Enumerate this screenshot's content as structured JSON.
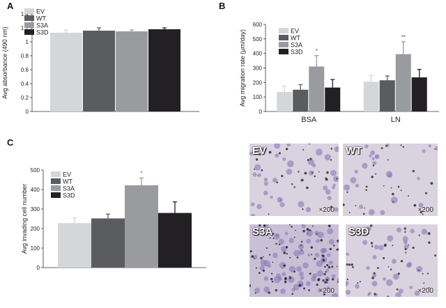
{
  "panels": {
    "a": {
      "letter": "A"
    },
    "b": {
      "letter": "B"
    },
    "c": {
      "letter": "C"
    }
  },
  "colors": {
    "EV": "#d4d6d8",
    "WT": "#5b5c5f",
    "S3A": "#9a9b9e",
    "S3D": "#222023"
  },
  "legend": [
    "EV",
    "WT",
    "S3A",
    "S3D"
  ],
  "chart_data": [
    {
      "type": "bar",
      "ylabel": "Avg absorbance (490 nm)",
      "ylim": [
        0,
        1.4
      ],
      "yticks": [
        "0",
        "0.2",
        "0.4",
        "0.6",
        "0.8",
        "1",
        "1.2",
        "1.4"
      ],
      "series": [
        {
          "name": "EV",
          "values": [
            1.13
          ],
          "error": [
            0.04
          ]
        },
        {
          "name": "WT",
          "values": [
            1.16
          ],
          "error": [
            0.04
          ]
        },
        {
          "name": "S3A",
          "values": [
            1.15
          ],
          "error": [
            0.02
          ]
        },
        {
          "name": "S3D",
          "values": [
            1.18
          ],
          "error": [
            0.02
          ]
        }
      ],
      "legend_position": "top-left"
    },
    {
      "type": "bar",
      "ylabel": "Avg migration rate (μm/day)",
      "ylim": [
        0,
        600
      ],
      "yticks": [
        "0",
        "100",
        "200",
        "300",
        "400",
        "500",
        "600"
      ],
      "categories": [
        "BSA",
        "LN"
      ],
      "series": [
        {
          "name": "EV",
          "values": [
            135,
            205
          ],
          "error": [
            40,
            45
          ]
        },
        {
          "name": "WT",
          "values": [
            150,
            215
          ],
          "error": [
            35,
            30
          ]
        },
        {
          "name": "S3A",
          "values": [
            310,
            395
          ],
          "error": [
            75,
            85
          ],
          "annotations": [
            "*",
            "**"
          ]
        },
        {
          "name": "S3D",
          "values": [
            165,
            235
          ],
          "error": [
            55,
            55
          ]
        }
      ],
      "legend_position": "top-left"
    },
    {
      "type": "bar",
      "ylabel": "Avg invading cell number",
      "ylim": [
        0,
        500
      ],
      "yticks": [
        "0",
        "100",
        "200",
        "300",
        "400",
        "500"
      ],
      "series": [
        {
          "name": "EV",
          "values": [
            228
          ],
          "error": [
            27
          ]
        },
        {
          "name": "WT",
          "values": [
            252
          ],
          "error": [
            22
          ]
        },
        {
          "name": "S3A",
          "values": [
            422
          ],
          "error": [
            37
          ],
          "annotations": [
            "*"
          ]
        },
        {
          "name": "S3D",
          "values": [
            280
          ],
          "error": [
            57
          ]
        }
      ],
      "legend_position": "top-left"
    }
  ],
  "micrographs": [
    {
      "label": "EV",
      "magnification": "×200"
    },
    {
      "label": "WT",
      "magnification": "×200"
    },
    {
      "label": "S3A",
      "magnification": "×200"
    },
    {
      "label": "S3D",
      "magnification": "×200"
    }
  ]
}
